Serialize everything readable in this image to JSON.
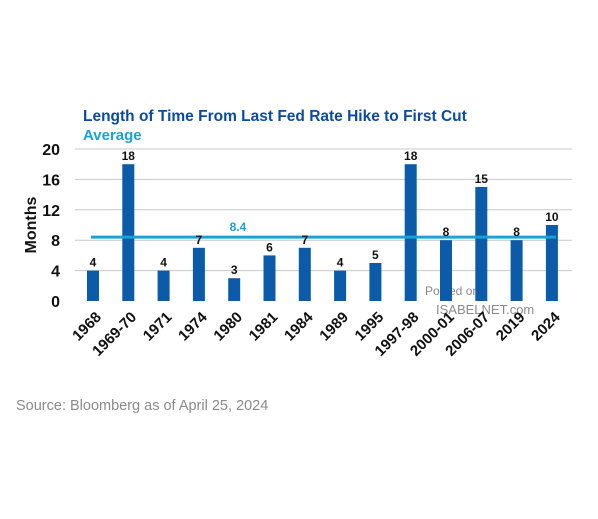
{
  "chart_data": {
    "type": "bar",
    "title": "Length of Time From Last Fed Rate Hike to First Cut",
    "subtitle": "Average",
    "ylabel": "Months",
    "xlabel": "",
    "categories": [
      "1968",
      "1969-70",
      "1971",
      "1974",
      "1980",
      "1981",
      "1984",
      "1989",
      "1995",
      "1997-98",
      "2000-01",
      "2006-07",
      "2019",
      "2024"
    ],
    "values": [
      4,
      18,
      4,
      7,
      3,
      6,
      7,
      4,
      5,
      18,
      8,
      15,
      8,
      10
    ],
    "average": 8.4,
    "average_label": "8.4",
    "ylim": [
      0,
      20
    ],
    "yticks": [
      0,
      4,
      8,
      12,
      16,
      20
    ],
    "grid": true,
    "legend": "none",
    "colors": {
      "bar": "#0b5ba8",
      "average_line": "#1ba1d6",
      "title": "#0b4a9e",
      "grid": "#c8c8c8"
    }
  },
  "watermark": {
    "line1": "Posted on",
    "line2": "ISABELNET.com"
  },
  "source": "Source: Bloomberg as of April 25, 2024"
}
